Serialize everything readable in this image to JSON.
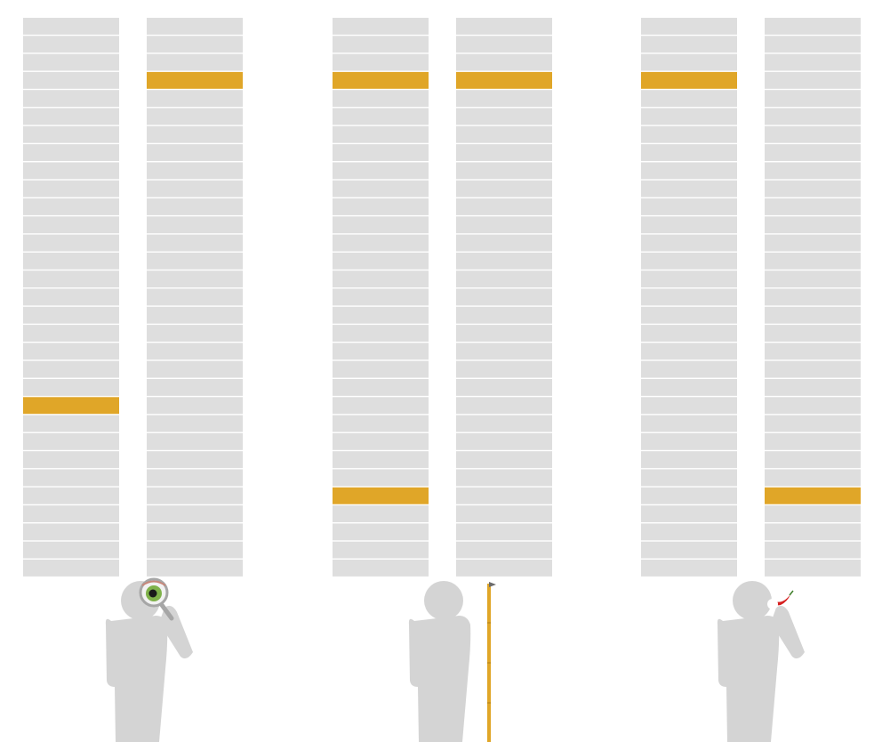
{
  "colors": {
    "background": "#ffffff",
    "row_fill": "#dedede",
    "row_separator": "#ffffff",
    "highlight": "#e0a628",
    "figure": "#d4d4d4",
    "magnifier_rim": "#a6a6a6",
    "eye_iris": "#7fb24a",
    "eye_pupil": "#1a1a1a",
    "tape": "#e0a628",
    "chili": "#d62020"
  },
  "rows_per_column": 31,
  "groups": [
    {
      "figure_prop": "magnifier-eye-icon",
      "columns": [
        {
          "highlighted_rows": [
            21
          ]
        },
        {
          "highlighted_rows": [
            3
          ]
        }
      ]
    },
    {
      "figure_prop": "measuring-tape-icon",
      "columns": [
        {
          "highlighted_rows": [
            3,
            26
          ]
        },
        {
          "highlighted_rows": [
            3
          ]
        }
      ]
    },
    {
      "figure_prop": "chili-pepper-icon",
      "columns": [
        {
          "highlighted_rows": [
            3
          ]
        },
        {
          "highlighted_rows": [
            26
          ]
        }
      ]
    }
  ]
}
